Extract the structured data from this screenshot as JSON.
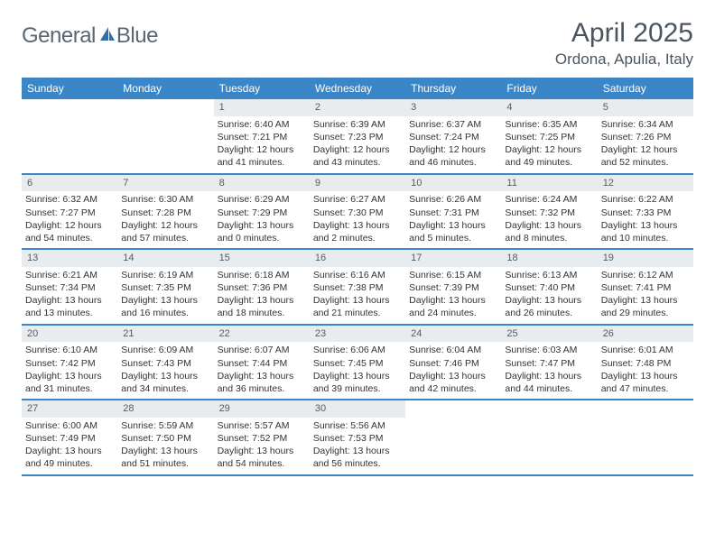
{
  "brand": {
    "word1": "General",
    "word2": "Blue"
  },
  "colors": {
    "header_bg": "#3b86c7",
    "header_text": "#ffffff",
    "daynum_bg": "#e9ecef",
    "text": "#4a5560",
    "logo_accent": "#2f6fae"
  },
  "title": "April 2025",
  "location": "Ordona, Apulia, Italy",
  "weekdays": [
    "Sunday",
    "Monday",
    "Tuesday",
    "Wednesday",
    "Thursday",
    "Friday",
    "Saturday"
  ],
  "weeks": [
    [
      {
        "n": "",
        "sr": "",
        "ss": "",
        "dl": ""
      },
      {
        "n": "",
        "sr": "",
        "ss": "",
        "dl": ""
      },
      {
        "n": "1",
        "sr": "Sunrise: 6:40 AM",
        "ss": "Sunset: 7:21 PM",
        "dl": "Daylight: 12 hours and 41 minutes."
      },
      {
        "n": "2",
        "sr": "Sunrise: 6:39 AM",
        "ss": "Sunset: 7:23 PM",
        "dl": "Daylight: 12 hours and 43 minutes."
      },
      {
        "n": "3",
        "sr": "Sunrise: 6:37 AM",
        "ss": "Sunset: 7:24 PM",
        "dl": "Daylight: 12 hours and 46 minutes."
      },
      {
        "n": "4",
        "sr": "Sunrise: 6:35 AM",
        "ss": "Sunset: 7:25 PM",
        "dl": "Daylight: 12 hours and 49 minutes."
      },
      {
        "n": "5",
        "sr": "Sunrise: 6:34 AM",
        "ss": "Sunset: 7:26 PM",
        "dl": "Daylight: 12 hours and 52 minutes."
      }
    ],
    [
      {
        "n": "6",
        "sr": "Sunrise: 6:32 AM",
        "ss": "Sunset: 7:27 PM",
        "dl": "Daylight: 12 hours and 54 minutes."
      },
      {
        "n": "7",
        "sr": "Sunrise: 6:30 AM",
        "ss": "Sunset: 7:28 PM",
        "dl": "Daylight: 12 hours and 57 minutes."
      },
      {
        "n": "8",
        "sr": "Sunrise: 6:29 AM",
        "ss": "Sunset: 7:29 PM",
        "dl": "Daylight: 13 hours and 0 minutes."
      },
      {
        "n": "9",
        "sr": "Sunrise: 6:27 AM",
        "ss": "Sunset: 7:30 PM",
        "dl": "Daylight: 13 hours and 2 minutes."
      },
      {
        "n": "10",
        "sr": "Sunrise: 6:26 AM",
        "ss": "Sunset: 7:31 PM",
        "dl": "Daylight: 13 hours and 5 minutes."
      },
      {
        "n": "11",
        "sr": "Sunrise: 6:24 AM",
        "ss": "Sunset: 7:32 PM",
        "dl": "Daylight: 13 hours and 8 minutes."
      },
      {
        "n": "12",
        "sr": "Sunrise: 6:22 AM",
        "ss": "Sunset: 7:33 PM",
        "dl": "Daylight: 13 hours and 10 minutes."
      }
    ],
    [
      {
        "n": "13",
        "sr": "Sunrise: 6:21 AM",
        "ss": "Sunset: 7:34 PM",
        "dl": "Daylight: 13 hours and 13 minutes."
      },
      {
        "n": "14",
        "sr": "Sunrise: 6:19 AM",
        "ss": "Sunset: 7:35 PM",
        "dl": "Daylight: 13 hours and 16 minutes."
      },
      {
        "n": "15",
        "sr": "Sunrise: 6:18 AM",
        "ss": "Sunset: 7:36 PM",
        "dl": "Daylight: 13 hours and 18 minutes."
      },
      {
        "n": "16",
        "sr": "Sunrise: 6:16 AM",
        "ss": "Sunset: 7:38 PM",
        "dl": "Daylight: 13 hours and 21 minutes."
      },
      {
        "n": "17",
        "sr": "Sunrise: 6:15 AM",
        "ss": "Sunset: 7:39 PM",
        "dl": "Daylight: 13 hours and 24 minutes."
      },
      {
        "n": "18",
        "sr": "Sunrise: 6:13 AM",
        "ss": "Sunset: 7:40 PM",
        "dl": "Daylight: 13 hours and 26 minutes."
      },
      {
        "n": "19",
        "sr": "Sunrise: 6:12 AM",
        "ss": "Sunset: 7:41 PM",
        "dl": "Daylight: 13 hours and 29 minutes."
      }
    ],
    [
      {
        "n": "20",
        "sr": "Sunrise: 6:10 AM",
        "ss": "Sunset: 7:42 PM",
        "dl": "Daylight: 13 hours and 31 minutes."
      },
      {
        "n": "21",
        "sr": "Sunrise: 6:09 AM",
        "ss": "Sunset: 7:43 PM",
        "dl": "Daylight: 13 hours and 34 minutes."
      },
      {
        "n": "22",
        "sr": "Sunrise: 6:07 AM",
        "ss": "Sunset: 7:44 PM",
        "dl": "Daylight: 13 hours and 36 minutes."
      },
      {
        "n": "23",
        "sr": "Sunrise: 6:06 AM",
        "ss": "Sunset: 7:45 PM",
        "dl": "Daylight: 13 hours and 39 minutes."
      },
      {
        "n": "24",
        "sr": "Sunrise: 6:04 AM",
        "ss": "Sunset: 7:46 PM",
        "dl": "Daylight: 13 hours and 42 minutes."
      },
      {
        "n": "25",
        "sr": "Sunrise: 6:03 AM",
        "ss": "Sunset: 7:47 PM",
        "dl": "Daylight: 13 hours and 44 minutes."
      },
      {
        "n": "26",
        "sr": "Sunrise: 6:01 AM",
        "ss": "Sunset: 7:48 PM",
        "dl": "Daylight: 13 hours and 47 minutes."
      }
    ],
    [
      {
        "n": "27",
        "sr": "Sunrise: 6:00 AM",
        "ss": "Sunset: 7:49 PM",
        "dl": "Daylight: 13 hours and 49 minutes."
      },
      {
        "n": "28",
        "sr": "Sunrise: 5:59 AM",
        "ss": "Sunset: 7:50 PM",
        "dl": "Daylight: 13 hours and 51 minutes."
      },
      {
        "n": "29",
        "sr": "Sunrise: 5:57 AM",
        "ss": "Sunset: 7:52 PM",
        "dl": "Daylight: 13 hours and 54 minutes."
      },
      {
        "n": "30",
        "sr": "Sunrise: 5:56 AM",
        "ss": "Sunset: 7:53 PM",
        "dl": "Daylight: 13 hours and 56 minutes."
      },
      {
        "n": "",
        "sr": "",
        "ss": "",
        "dl": ""
      },
      {
        "n": "",
        "sr": "",
        "ss": "",
        "dl": ""
      },
      {
        "n": "",
        "sr": "",
        "ss": "",
        "dl": ""
      }
    ]
  ]
}
